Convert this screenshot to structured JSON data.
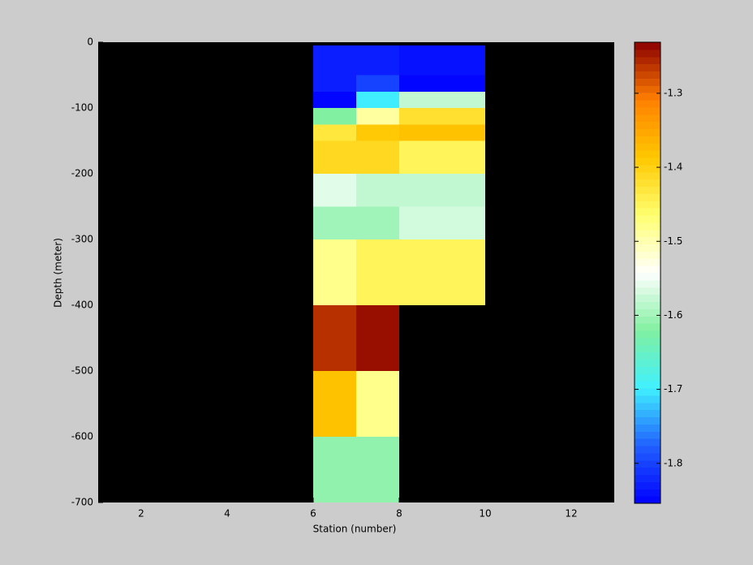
{
  "chart_data": {
    "type": "heatmap",
    "xlabel": "Station (number)",
    "ylabel": "Depth (meter)",
    "x_edges": [
      6,
      7,
      8,
      9,
      10
    ],
    "y_edges": [
      -5,
      -50,
      -75,
      -100,
      -125,
      -150,
      -200,
      -250,
      -300,
      -400,
      -500,
      -600,
      -700
    ],
    "values": [
      [
        -1.83,
        -1.83,
        -1.84,
        -1.84
      ],
      [
        -1.83,
        -1.8,
        -1.85,
        -1.85
      ],
      [
        -1.85,
        -1.7,
        -1.58,
        -1.58
      ],
      [
        -1.62,
        -1.49,
        -1.42,
        -1.42
      ],
      [
        -1.43,
        -1.39,
        -1.38,
        -1.38
      ],
      [
        -1.41,
        -1.41,
        -1.45,
        -1.45
      ],
      [
        -1.56,
        -1.58,
        -1.58,
        -1.58
      ],
      [
        -1.6,
        -1.6,
        -1.57,
        -1.57
      ],
      [
        -1.48,
        -1.45,
        -1.45,
        -1.45
      ],
      [
        -1.26,
        -1.24,
        null,
        null
      ],
      [
        -1.38,
        -1.48,
        null,
        null
      ],
      [
        -1.61,
        -1.61,
        null,
        null
      ]
    ],
    "xlim": [
      1,
      13
    ],
    "xticks": [
      2,
      4,
      6,
      8,
      10,
      12
    ],
    "ylim": [
      -700,
      0
    ],
    "yticks": [
      0,
      -100,
      -200,
      -300,
      -400,
      -500,
      -600,
      -700
    ],
    "clim": [
      -1.854,
      -1.231
    ],
    "cticks": [
      -1.3,
      -1.4,
      -1.5,
      -1.6,
      -1.7,
      -1.8
    ],
    "colormap": [
      "#0000ff",
      "#2060ff",
      "#40f0ff",
      "#80f0a0",
      "#ffffff",
      "#ffff70",
      "#ffc800",
      "#ff8000",
      "#8b0000"
    ],
    "missing_color": "#000000"
  }
}
